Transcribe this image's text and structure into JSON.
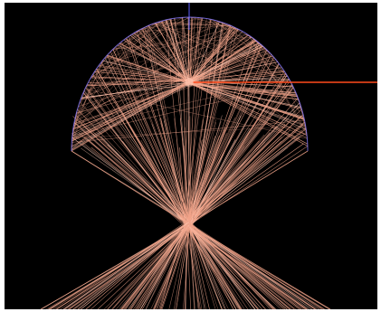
{
  "scene": {
    "background_color": "#000000",
    "frame_color": "#ffffff",
    "ray_color": "#f2a48a",
    "ray_color_bright": "#ffc8b4",
    "outline_color": "#8a7cff",
    "beam_color": "#ff4a1c",
    "axis_color": "#6060ff"
  }
}
